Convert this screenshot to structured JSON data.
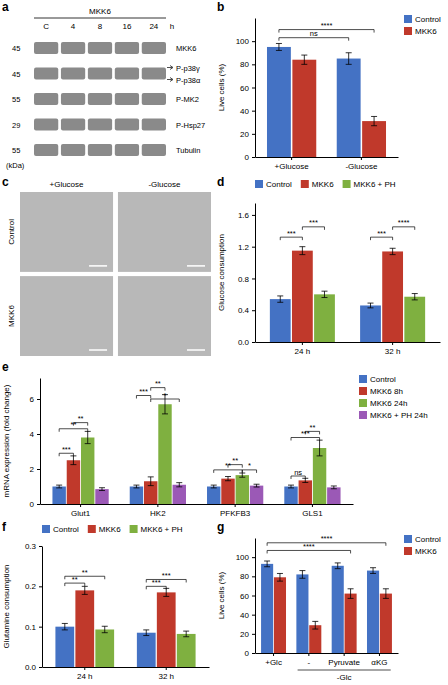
{
  "chart_data": [
    {
      "type": "blot",
      "title": "a",
      "subtitle": "MKK6",
      "categories": [
        "C",
        "4",
        "8",
        "16",
        "24"
      ],
      "xlabel": "h",
      "ylabel": "(kDa)",
      "series": [
        {
          "labels": [
            "MKK6"
          ],
          "kda": 45
        },
        {
          "labels": [
            "P-p38γ",
            "P-p38α"
          ],
          "kda": 45
        },
        {
          "labels": [
            "P-MK2"
          ],
          "kda": 55
        },
        {
          "labels": [
            "P-Hsp27"
          ],
          "kda": 29
        },
        {
          "labels": [
            "Tubulin"
          ],
          "kda": 55
        }
      ]
    },
    {
      "type": "bar",
      "title": "b",
      "categories": [
        "+Glucose",
        "-Glucose"
      ],
      "ylabel": "Live cells (%)",
      "ylim": [
        0,
        120
      ],
      "yticks": [
        0,
        20,
        40,
        60,
        80,
        100
      ],
      "legend": "right",
      "series": [
        {
          "name": "Control",
          "color": "#4472C4",
          "values": [
            95,
            85
          ],
          "errors": [
            3,
            5
          ]
        },
        {
          "name": "MKK6",
          "color": "#C0392B",
          "values": [
            84,
            31
          ],
          "errors": [
            4,
            4
          ]
        }
      ],
      "annotations": [
        {
          "text": "ns",
          "y": 103,
          "from": [
            0,
            0
          ],
          "to": [
            0,
            1
          ]
        },
        {
          "text": "****",
          "y": 110,
          "from": [
            0,
            0
          ],
          "to": [
            1,
            1
          ]
        }
      ]
    },
    {
      "type": "image",
      "title": "c",
      "categories": [
        "+Glucose",
        "-Glucose"
      ],
      "series": [
        {
          "name": "Control"
        },
        {
          "name": "MKK6"
        }
      ]
    },
    {
      "type": "bar",
      "title": "d",
      "categories": [
        "24 h",
        "32 h"
      ],
      "ylabel": "Glucose consumption",
      "ylim": [
        0,
        1.75
      ],
      "yticks": [
        {
          "value": 0,
          "label": "0.0"
        },
        0.4,
        0.8,
        1.2,
        1.6
      ],
      "legend": "top",
      "series": [
        {
          "name": "Control",
          "color": "#4472C4",
          "values": [
            0.54,
            0.46
          ],
          "errors": [
            0.04,
            0.03
          ]
        },
        {
          "name": "MKK6",
          "color": "#C0392B",
          "values": [
            1.15,
            1.14
          ],
          "errors": [
            0.05,
            0.04
          ]
        },
        {
          "name": "MKK6 + PH",
          "color": "#7FB040",
          "values": [
            0.6,
            0.57
          ],
          "errors": [
            0.04,
            0.04
          ]
        }
      ],
      "annotations": [
        {
          "text": "***",
          "y": 1.32,
          "from": [
            0,
            0
          ],
          "to": [
            1,
            0
          ]
        },
        {
          "text": "***",
          "y": 1.45,
          "from": [
            1,
            0
          ],
          "to": [
            2,
            0
          ]
        },
        {
          "text": "***",
          "y": 1.32,
          "from": [
            0,
            1
          ],
          "to": [
            1,
            1
          ]
        },
        {
          "text": "****",
          "y": 1.45,
          "from": [
            1,
            1
          ],
          "to": [
            2,
            1
          ]
        }
      ]
    },
    {
      "type": "bar",
      "title": "e",
      "categories": [
        "Glut1",
        "HK2",
        "PFKFB3",
        "GLS1"
      ],
      "ylabel": "mRNA expression (fold change)",
      "ylim": [
        0,
        7.2
      ],
      "yticks": [
        0,
        2,
        4,
        6
      ],
      "legend": "right",
      "series": [
        {
          "name": "Control",
          "color": "#4472C4",
          "values": [
            1.0,
            1.0,
            1.0,
            1.0
          ],
          "errors": [
            0.08,
            0.08,
            0.08,
            0.08
          ]
        },
        {
          "name": "MKK6 8h",
          "color": "#C0392B",
          "values": [
            2.5,
            1.3,
            1.45,
            1.35
          ],
          "errors": [
            0.25,
            0.25,
            0.12,
            0.12
          ]
        },
        {
          "name": "MKK6 24h",
          "color": "#7FB040",
          "values": [
            3.8,
            5.7,
            1.65,
            3.2
          ],
          "errors": [
            0.35,
            0.55,
            0.12,
            0.45
          ]
        },
        {
          "name": "MKK6 + PH 24h",
          "color": "#9B59B6",
          "values": [
            0.85,
            1.1,
            1.05,
            0.95
          ],
          "errors": [
            0.08,
            0.12,
            0.08,
            0.08
          ]
        }
      ],
      "annotations": [
        {
          "text": "***",
          "y": 2.9,
          "from": [
            0,
            0
          ],
          "to": [
            1,
            0
          ]
        },
        {
          "text": "**",
          "y": 4.3,
          "from": [
            0,
            0
          ],
          "to": [
            2,
            0
          ]
        },
        {
          "text": "**",
          "y": 4.65,
          "from": [
            1,
            0
          ],
          "to": [
            2,
            0
          ]
        },
        {
          "text": "***",
          "y": 6.2,
          "from": [
            0,
            1
          ],
          "to": [
            1,
            1
          ]
        },
        {
          "text": "**",
          "y": 6.65,
          "from": [
            1,
            1
          ],
          "to": [
            2,
            1
          ]
        },
        {
          "text": "*",
          "y": 6.0,
          "from": [
            1,
            1
          ],
          "to": [
            3,
            1
          ]
        },
        {
          "text": "**",
          "y": 1.95,
          "from": [
            0,
            2
          ],
          "to": [
            2,
            2
          ]
        },
        {
          "text": "**",
          "y": 2.25,
          "from": [
            1,
            2
          ],
          "to": [
            2,
            2
          ]
        },
        {
          "text": "*",
          "y": 1.95,
          "from": [
            2,
            2
          ],
          "to": [
            3,
            2
          ]
        },
        {
          "text": "ns",
          "y": 1.6,
          "from": [
            0,
            3
          ],
          "to": [
            1,
            3
          ]
        },
        {
          "text": "***",
          "y": 3.8,
          "from": [
            0,
            3
          ],
          "to": [
            2,
            3
          ]
        },
        {
          "text": "**",
          "y": 4.15,
          "from": [
            1,
            3
          ],
          "to": [
            2,
            3
          ]
        }
      ]
    },
    {
      "type": "bar",
      "title": "f",
      "categories": [
        "24 h",
        "32 h"
      ],
      "ylabel": "Glutamine consumption",
      "ylim": [
        0,
        0.3
      ],
      "yticks": [
        {
          "value": 0,
          "label": "0.0"
        },
        0.1,
        0.2,
        0.3
      ],
      "legend": "top",
      "series": [
        {
          "name": "Control",
          "color": "#4472C4",
          "values": [
            0.1,
            0.085
          ],
          "errors": [
            0.008,
            0.007
          ]
        },
        {
          "name": "MKK6",
          "color": "#C0392B",
          "values": [
            0.19,
            0.185
          ],
          "errors": [
            0.01,
            0.01
          ]
        },
        {
          "name": "MKK6 + PH",
          "color": "#7FB040",
          "values": [
            0.093,
            0.082
          ],
          "errors": [
            0.008,
            0.007
          ]
        }
      ],
      "annotations": [
        {
          "text": "**",
          "y": 0.208,
          "from": [
            0,
            0
          ],
          "to": [
            1,
            0
          ]
        },
        {
          "text": "**",
          "y": 0.225,
          "from": [
            0,
            0
          ],
          "to": [
            2,
            0
          ]
        },
        {
          "text": "***",
          "y": 0.2,
          "from": [
            0,
            1
          ],
          "to": [
            1,
            1
          ]
        },
        {
          "text": "***",
          "y": 0.217,
          "from": [
            0,
            1
          ],
          "to": [
            2,
            1
          ]
        }
      ]
    },
    {
      "type": "bar",
      "title": "g",
      "categories": [
        "+Glc",
        "-",
        "Pyruvate",
        "αKG"
      ],
      "ylabel": "Live cells (%)",
      "ylim": [
        0,
        120
      ],
      "yticks": [
        0,
        20,
        40,
        60,
        80,
        100
      ],
      "legend": "right",
      "series": [
        {
          "name": "Control",
          "color": "#4472C4",
          "values": [
            93,
            82,
            91,
            86
          ],
          "errors": [
            3,
            4,
            3,
            3
          ]
        },
        {
          "name": "MKK6",
          "color": "#C0392B",
          "values": [
            79,
            29,
            62,
            62
          ],
          "errors": [
            4,
            4,
            5,
            5
          ]
        }
      ],
      "annotations": [
        {
          "text": "****",
          "y": 107,
          "from": [
            0,
            0
          ],
          "to": [
            1,
            2
          ]
        },
        {
          "text": "****",
          "y": 115,
          "from": [
            0,
            0
          ],
          "to": [
            1,
            3
          ]
        },
        {
          "text": "-Glc",
          "from": 1,
          "to": 3
        }
      ]
    }
  ]
}
